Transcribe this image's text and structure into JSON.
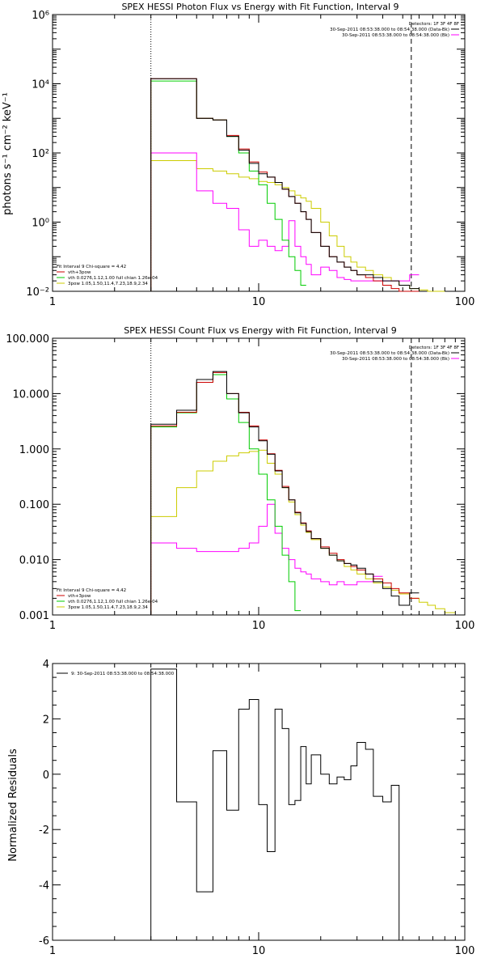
{
  "chart_data": [
    {
      "type": "line",
      "panel": "photon",
      "title": "SPEX HESSI Photon Flux vs Energy with Fit Function, Interval 9",
      "ylabel": "photons s⁻¹ cm⁻² keV⁻¹",
      "xscale": "log",
      "yscale": "log",
      "xlim": [
        1,
        100
      ],
      "ylim": [
        0.01,
        1000000
      ],
      "x_tick_labels": [
        "1",
        "10",
        "100"
      ],
      "y_tick_labels": [
        "10⁻²",
        "10⁰",
        "10²",
        "10⁴",
        "10⁶"
      ],
      "y_ticks": [
        0.01,
        1,
        100,
        10000,
        1000000
      ],
      "annotations": {
        "detectors": "Detectors: 1F 3F 4F 8F",
        "legend_right": [
          {
            "text": "30-Sep-2011 08:53:38.000 to 08:54:38.000 (Data-Bk)",
            "color": "#000000"
          },
          {
            "text": "30-Sep-2011 08:53:38.000 to 08:54:38.000 (Bk)",
            "color": "#ff00ff"
          }
        ],
        "fit_header": "Fit Interval 9   Chi-square = 4.42",
        "legend_left": [
          {
            "text": "vth+3pow",
            "color": "#cc0000"
          },
          {
            "text": "vth 0.0276,1.12,1.00  full chian 1.26e-04",
            "color": "#00cc00"
          },
          {
            "text": "3pow 1.05,1.50,11.4,7.23,18.9,2.34",
            "color": "#cccc00"
          }
        ],
        "vlines": [
          {
            "x": 3,
            "style": "dotted"
          },
          {
            "x": 55,
            "style": "dashed"
          }
        ]
      },
      "edges": [
        3,
        4,
        5,
        6,
        7,
        8,
        9,
        10,
        11,
        12,
        13,
        14,
        15,
        16,
        17,
        18,
        20,
        22,
        24,
        26,
        28,
        30,
        33,
        36,
        40,
        44,
        48,
        54,
        60,
        66,
        72,
        80
      ],
      "series": [
        {
          "name": "Data-Bk",
          "color": "#000000",
          "values": [
            14000,
            14000,
            1000,
            900,
            300,
            120,
            50,
            25,
            20,
            14,
            9,
            5.5,
            3.5,
            2,
            1.2,
            0.5,
            0.2,
            0.1,
            0.07,
            0.05,
            0.04,
            0.03,
            0.03,
            0.025,
            0.02,
            0.02,
            0.015,
            0.012
          ]
        },
        {
          "name": "vth+3pow",
          "color": "#cc0000",
          "values": [
            14000,
            14000,
            1000,
            900,
            320,
            130,
            55,
            28,
            20,
            14,
            9,
            5.5,
            3.5,
            2,
            1.2,
            0.5,
            0.2,
            0.1,
            0.07,
            0.05,
            0.04,
            0.03,
            0.025,
            0.02,
            0.015,
            0.012,
            0.01,
            0.009
          ]
        },
        {
          "name": "vth",
          "color": "#00cc00",
          "values": [
            12000,
            12000,
            1000,
            900,
            300,
            100,
            30,
            12,
            3.5,
            1.2,
            0.3,
            0.1,
            0.04,
            0.015
          ]
        },
        {
          "name": "3pow",
          "color": "#cccc00",
          "values": [
            60,
            60,
            35,
            30,
            25,
            20,
            18,
            15,
            14,
            12,
            10,
            8,
            6,
            5,
            4,
            2.5,
            1,
            0.4,
            0.2,
            0.1,
            0.07,
            0.05,
            0.04,
            0.03,
            0.025,
            0.02,
            0.015,
            0.012,
            0.011,
            0.01,
            0.009
          ]
        },
        {
          "name": "Bk",
          "color": "#ff00ff",
          "values": [
            100,
            100,
            8,
            3.5,
            2.5,
            0.6,
            0.2,
            0.3,
            0.2,
            0.15,
            0.2,
            1.1,
            0.2,
            0.1,
            0.06,
            0.03,
            0.05,
            0.04,
            0.025,
            0.022,
            0.02,
            0.02,
            0.02,
            0.02,
            0.02,
            0.02,
            0.02,
            0.03
          ]
        }
      ]
    },
    {
      "type": "line",
      "panel": "count",
      "title": "SPEX HESSI Count Flux vs Energy with Fit Function, Interval 9",
      "ylabel": "",
      "xscale": "log",
      "yscale": "log",
      "xlim": [
        1,
        100
      ],
      "ylim": [
        0.001,
        100
      ],
      "x_tick_labels": [
        "1",
        "10",
        "100"
      ],
      "y_tick_labels": [
        "0.001",
        "0.010",
        "0.100",
        "1.000",
        "10.000",
        "100.000"
      ],
      "y_ticks": [
        0.001,
        0.01,
        0.1,
        1,
        10,
        100
      ],
      "annotations": {
        "detectors": "Detectors: 1F 3F 4F 8F",
        "legend_right": [
          {
            "text": "30-Sep-2011 08:53:38.000 to 08:54:38.000 (Data-Bk)",
            "color": "#000000"
          },
          {
            "text": "30-Sep-2011 08:53:38.000 to 08:54:38.000 (Bk)",
            "color": "#ff00ff"
          }
        ],
        "fit_header": "Fit Interval 9   Chi-square = 4.42",
        "legend_left": [
          {
            "text": "vth+3pow",
            "color": "#cc0000"
          },
          {
            "text": "vth 0.0276,1.12,1.00  full chian 1.26e-04",
            "color": "#00cc00"
          },
          {
            "text": "3pow 1.05,1.50,11.4,7.23,18.9,2.34",
            "color": "#cccc00"
          }
        ],
        "vlines": [
          {
            "x": 3,
            "style": "dotted"
          },
          {
            "x": 55,
            "style": "dashed"
          }
        ]
      },
      "edges": [
        3,
        4,
        5,
        6,
        7,
        8,
        9,
        10,
        11,
        12,
        13,
        14,
        15,
        16,
        17,
        18,
        20,
        22,
        24,
        26,
        28,
        30,
        33,
        36,
        40,
        44,
        48,
        54,
        60,
        66,
        72,
        80,
        90
      ],
      "series": [
        {
          "name": "Data-Bk",
          "color": "#000000",
          "values": [
            2.8,
            5.0,
            18.0,
            25.0,
            10.0,
            4.5,
            2.5,
            1.4,
            0.8,
            0.4,
            0.2,
            0.12,
            0.07,
            0.045,
            0.032,
            0.024,
            0.016,
            0.012,
            0.0095,
            0.0085,
            0.008,
            0.007,
            0.0055,
            0.004,
            0.003,
            0.0022,
            0.0015,
            0.0025
          ]
        },
        {
          "name": "vth+3pow",
          "color": "#cc0000",
          "values": [
            2.6,
            4.6,
            16.0,
            24.0,
            10.0,
            4.6,
            2.6,
            1.45,
            0.82,
            0.41,
            0.21,
            0.12,
            0.072,
            0.046,
            0.033,
            0.024,
            0.017,
            0.013,
            0.01,
            0.0085,
            0.0075,
            0.0065,
            0.0055,
            0.0045,
            0.0038,
            0.003,
            0.0025,
            0.002
          ]
        },
        {
          "name": "vth",
          "color": "#00cc00",
          "values": [
            2.5,
            4.5,
            16.0,
            22.0,
            8.0,
            3.0,
            1.0,
            0.35,
            0.12,
            0.04,
            0.012,
            0.004,
            0.0012
          ]
        },
        {
          "name": "3pow",
          "color": "#cccc00",
          "values": [
            0.06,
            0.2,
            0.4,
            0.6,
            0.75,
            0.85,
            0.9,
            0.95,
            0.55,
            0.35,
            0.2,
            0.11,
            0.065,
            0.042,
            0.031,
            0.023,
            0.016,
            0.012,
            0.0095,
            0.0075,
            0.0065,
            0.0055,
            0.0045,
            0.0038,
            0.0032,
            0.0028,
            0.0024,
            0.002,
            0.0017,
            0.0015,
            0.0013,
            0.0011
          ]
        },
        {
          "name": "Bk",
          "color": "#ff00ff",
          "values": [
            0.02,
            0.016,
            0.014,
            0.014,
            0.014,
            0.016,
            0.02,
            0.04,
            0.1,
            0.03,
            0.016,
            0.01,
            0.007,
            0.006,
            0.0055,
            0.0045,
            0.004,
            0.0035,
            0.004,
            0.0035,
            0.0035,
            0.004,
            0.004,
            0.005
          ]
        }
      ]
    },
    {
      "type": "line",
      "panel": "residuals",
      "title": "",
      "ylabel": "Normalized Residuals",
      "xscale": "log",
      "yscale": "linear",
      "xlim": [
        1,
        100
      ],
      "ylim": [
        -6,
        4
      ],
      "x_tick_labels": [
        "1",
        "10",
        "100"
      ],
      "y_tick_labels": [
        "-6",
        "-4",
        "-2",
        "0",
        "2",
        "4"
      ],
      "y_ticks": [
        -6,
        -4,
        -2,
        0,
        2,
        4
      ],
      "legend": "9: 30-Sep-2011 08:53:38.000 to 08:54:38.000",
      "edges": [
        3,
        4,
        5,
        6,
        7,
        8,
        9,
        10,
        11,
        12,
        13,
        14,
        15,
        16,
        17,
        18,
        20,
        22,
        24,
        26,
        28,
        30,
        33,
        36,
        40,
        44,
        48,
        54,
        55
      ],
      "series": [
        {
          "name": "",
          "color": "#000000",
          "values": [
            3.8,
            -1.0,
            -4.25,
            0.85,
            -1.3,
            2.35,
            2.7,
            -1.1,
            -2.8,
            2.35,
            1.65,
            -1.1,
            -0.95,
            1.0,
            -0.35,
            0.7,
            0.0,
            -0.35,
            -0.1,
            -0.2,
            0.3,
            1.15,
            0.9,
            -0.8,
            -1.0,
            -0.4,
            -6.0,
            -6.0
          ]
        }
      ]
    }
  ]
}
